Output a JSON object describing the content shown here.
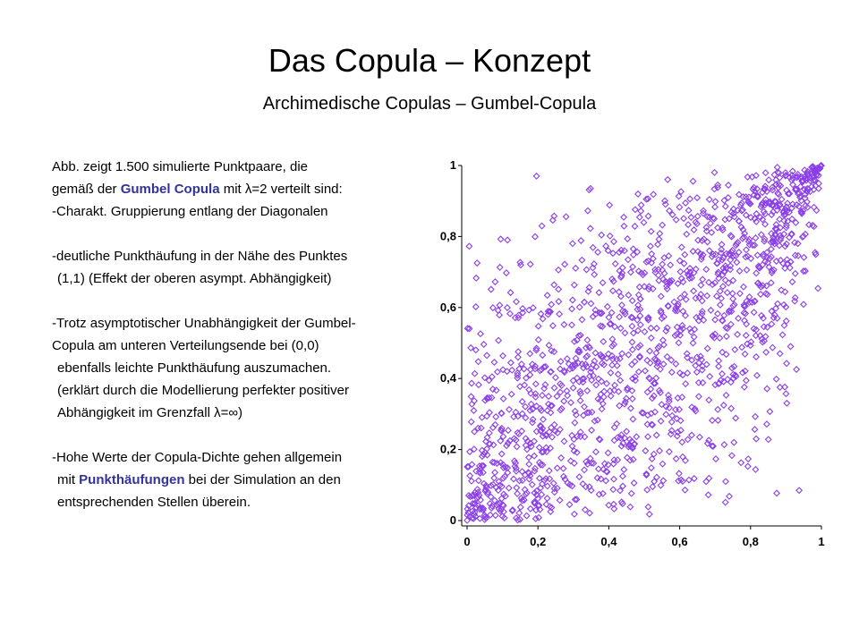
{
  "slide": {
    "title": "Das Copula – Konzept",
    "subtitle": "Archimedische Copulas – Gumbel-Copula"
  },
  "text": {
    "l1": "Abb. zeigt 1.500 simulierte Punktpaare, die",
    "l2_pre": "gemäß der ",
    "l2_hl": "Gumbel Copula",
    "l2_post": " mit λ=2 verteilt sind:",
    "l3": "-Charakt. Gruppierung entlang der Diagonalen",
    "l4": "-deutliche Punkthäufung in der Nähe des Punktes",
    "l5": "(1,1)  (Effekt der oberen asympt. Abhängigkeit)",
    "l6": "-Trotz asymptotischer Unabhängigkeit der Gumbel-",
    "l7": "Copula am unteren Verteilungsende bei (0,0)",
    "l8": "ebenfalls leichte Punkthäufung auszumachen.",
    "l9": "(erklärt durch die Modellierung perfekter positiver",
    "l10": "Abhängigkeit im Grenzfall λ=∞)",
    "l11": "-Hohe Werte der Copula-Dichte gehen allgemein",
    "l12_pre": "mit ",
    "l12_hl": "Punkthäufungen",
    "l12_post": " bei der Simulation an den",
    "l13": "entsprechenden Stellen überein."
  },
  "colors": {
    "point": "#8B3FE8",
    "highlight": "#333399",
    "axis": "#000000"
  },
  "chart_data": {
    "type": "scatter",
    "title": "",
    "xlabel": "",
    "ylabel": "",
    "xlim": [
      0,
      1
    ],
    "ylim": [
      0,
      1
    ],
    "grid": false,
    "n_points": 1500,
    "copula": "Gumbel",
    "theta": 2,
    "marker": "diamond-outline",
    "x_ticks": [
      "0",
      "0,2",
      "0,4",
      "0,6",
      "0,8",
      "1"
    ],
    "y_ticks": [
      "0",
      "0,2",
      "0,4",
      "0,6",
      "0,8",
      "1"
    ],
    "tick_values": [
      0,
      0.2,
      0.4,
      0.6,
      0.8,
      1
    ],
    "seed": 20240517,
    "series": [
      {
        "points": []
      }
    ]
  }
}
